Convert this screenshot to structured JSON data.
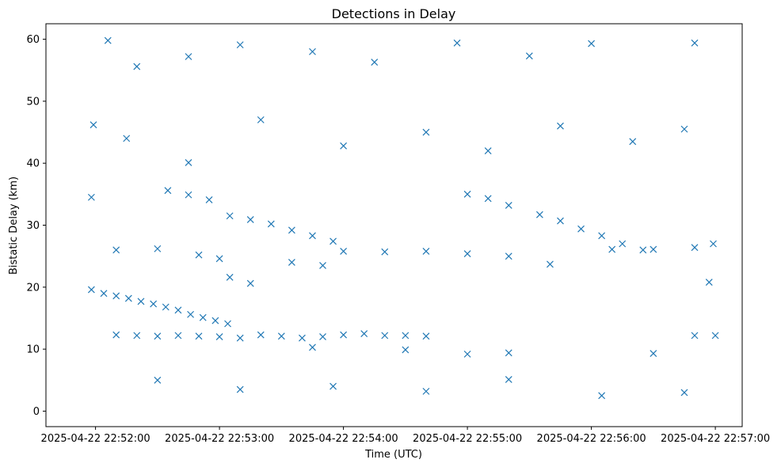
{
  "chart_data": {
    "type": "scatter",
    "title": "Detections in Delay",
    "xlabel": "Time (UTC)",
    "ylabel": "Bistatic Delay (km)",
    "x_ticks": [
      "2025-04-22 22:52:00",
      "2025-04-22 22:53:00",
      "2025-04-22 22:54:00",
      "2025-04-22 22:55:00",
      "2025-04-22 22:56:00",
      "2025-04-22 22:57:00"
    ],
    "xlim": [
      "2025-04-22 22:51:36",
      "2025-04-22 22:57:13"
    ],
    "y_ticks": [
      0,
      10,
      20,
      30,
      40,
      50,
      60
    ],
    "ylim": [
      -2.5,
      62.5
    ],
    "marker": "x",
    "marker_color": "#1f77b4",
    "grid": false,
    "legend": "none",
    "series": [
      {
        "points": [
          [
            "2025-04-22 22:51:58",
            19.6
          ],
          [
            "2025-04-22 22:52:04",
            19.0
          ],
          [
            "2025-04-22 22:52:10",
            18.6
          ],
          [
            "2025-04-22 22:52:16",
            18.2
          ],
          [
            "2025-04-22 22:52:22",
            17.7
          ],
          [
            "2025-04-22 22:52:28",
            17.3
          ],
          [
            "2025-04-22 22:52:34",
            16.8
          ],
          [
            "2025-04-22 22:52:40",
            16.3
          ],
          [
            "2025-04-22 22:52:46",
            15.6
          ],
          [
            "2025-04-22 22:52:52",
            15.1
          ],
          [
            "2025-04-22 22:52:58",
            14.6
          ],
          [
            "2025-04-22 22:53:04",
            14.1
          ],
          [
            "2025-04-22 22:52:10",
            12.3
          ],
          [
            "2025-04-22 22:52:20",
            12.2
          ],
          [
            "2025-04-22 22:52:30",
            12.1
          ],
          [
            "2025-04-22 22:52:40",
            12.2
          ],
          [
            "2025-04-22 22:52:50",
            12.1
          ],
          [
            "2025-04-22 22:53:00",
            12.0
          ],
          [
            "2025-04-22 22:53:10",
            11.8
          ],
          [
            "2025-04-22 22:53:20",
            12.3
          ],
          [
            "2025-04-22 22:53:30",
            12.1
          ],
          [
            "2025-04-22 22:53:40",
            11.8
          ],
          [
            "2025-04-22 22:53:50",
            12.0
          ],
          [
            "2025-04-22 22:54:00",
            12.3
          ],
          [
            "2025-04-22 22:54:10",
            12.5
          ],
          [
            "2025-04-22 22:54:20",
            12.2
          ],
          [
            "2025-04-22 22:54:30",
            12.2
          ],
          [
            "2025-04-22 22:54:40",
            12.1
          ],
          [
            "2025-04-22 22:53:45",
            10.3
          ],
          [
            "2025-04-22 22:54:30",
            9.9
          ],
          [
            "2025-04-22 22:55:00",
            9.2
          ],
          [
            "2025-04-22 22:55:20",
            9.4
          ],
          [
            "2025-04-22 22:56:30",
            9.3
          ],
          [
            "2025-04-22 22:56:50",
            12.2
          ],
          [
            "2025-04-22 22:57:00",
            12.2
          ],
          [
            "2025-04-22 22:52:35",
            35.6
          ],
          [
            "2025-04-22 22:52:45",
            34.9
          ],
          [
            "2025-04-22 22:52:55",
            34.1
          ],
          [
            "2025-04-22 22:53:05",
            31.5
          ],
          [
            "2025-04-22 22:53:15",
            30.9
          ],
          [
            "2025-04-22 22:53:25",
            30.2
          ],
          [
            "2025-04-22 22:53:35",
            29.2
          ],
          [
            "2025-04-22 22:53:45",
            28.3
          ],
          [
            "2025-04-22 22:53:55",
            27.4
          ],
          [
            "2025-04-22 22:53:00",
            24.6
          ],
          [
            "2025-04-22 22:53:05",
            21.6
          ],
          [
            "2025-04-22 22:53:15",
            20.6
          ],
          [
            "2025-04-22 22:53:35",
            24.0
          ],
          [
            "2025-04-22 22:53:50",
            23.5
          ],
          [
            "2025-04-22 22:52:10",
            26.0
          ],
          [
            "2025-04-22 22:52:30",
            26.2
          ],
          [
            "2025-04-22 22:52:50",
            25.2
          ],
          [
            "2025-04-22 22:54:00",
            25.8
          ],
          [
            "2025-04-22 22:54:20",
            25.7
          ],
          [
            "2025-04-22 22:54:40",
            25.8
          ],
          [
            "2025-04-22 22:55:00",
            25.4
          ],
          [
            "2025-04-22 22:55:20",
            25.0
          ],
          [
            "2025-04-22 22:55:40",
            23.7
          ],
          [
            "2025-04-22 22:56:10",
            26.1
          ],
          [
            "2025-04-22 22:56:30",
            26.1
          ],
          [
            "2025-04-22 22:56:50",
            26.4
          ],
          [
            "2025-04-22 22:55:00",
            35.0
          ],
          [
            "2025-04-22 22:55:10",
            34.3
          ],
          [
            "2025-04-22 22:55:20",
            33.2
          ],
          [
            "2025-04-22 22:55:35",
            31.7
          ],
          [
            "2025-04-22 22:55:45",
            30.7
          ],
          [
            "2025-04-22 22:55:55",
            29.4
          ],
          [
            "2025-04-22 22:56:05",
            28.3
          ],
          [
            "2025-04-22 22:56:15",
            27.0
          ],
          [
            "2025-04-22 22:56:25",
            26.0
          ],
          [
            "2025-04-22 22:52:06",
            59.8
          ],
          [
            "2025-04-22 22:52:20",
            55.6
          ],
          [
            "2025-04-22 22:52:45",
            57.2
          ],
          [
            "2025-04-22 22:53:10",
            59.1
          ],
          [
            "2025-04-22 22:53:45",
            58.0
          ],
          [
            "2025-04-22 22:54:15",
            56.3
          ],
          [
            "2025-04-22 22:54:55",
            59.4
          ],
          [
            "2025-04-22 22:55:30",
            57.3
          ],
          [
            "2025-04-22 22:56:00",
            59.3
          ],
          [
            "2025-04-22 22:56:50",
            59.4
          ],
          [
            "2025-04-22 22:52:15",
            44.0
          ],
          [
            "2025-04-22 22:52:45",
            40.1
          ],
          [
            "2025-04-22 22:53:20",
            47.0
          ],
          [
            "2025-04-22 22:54:00",
            42.8
          ],
          [
            "2025-04-22 22:54:40",
            45.0
          ],
          [
            "2025-04-22 22:55:10",
            42.0
          ],
          [
            "2025-04-22 22:55:45",
            46.0
          ],
          [
            "2025-04-22 22:56:20",
            43.5
          ],
          [
            "2025-04-22 22:56:45",
            45.5
          ],
          [
            "2025-04-22 22:52:30",
            5.0
          ],
          [
            "2025-04-22 22:53:10",
            3.5
          ],
          [
            "2025-04-22 22:53:55",
            4.0
          ],
          [
            "2025-04-22 22:54:40",
            3.2
          ],
          [
            "2025-04-22 22:55:20",
            5.1
          ],
          [
            "2025-04-22 22:56:05",
            2.5
          ],
          [
            "2025-04-22 22:56:45",
            3.0
          ],
          [
            "2025-04-22 22:51:59",
            46.2
          ],
          [
            "2025-04-22 22:51:58",
            34.5
          ],
          [
            "2025-04-22 22:56:57",
            20.8
          ],
          [
            "2025-04-22 22:56:59",
            27.0
          ]
        ]
      }
    ]
  }
}
